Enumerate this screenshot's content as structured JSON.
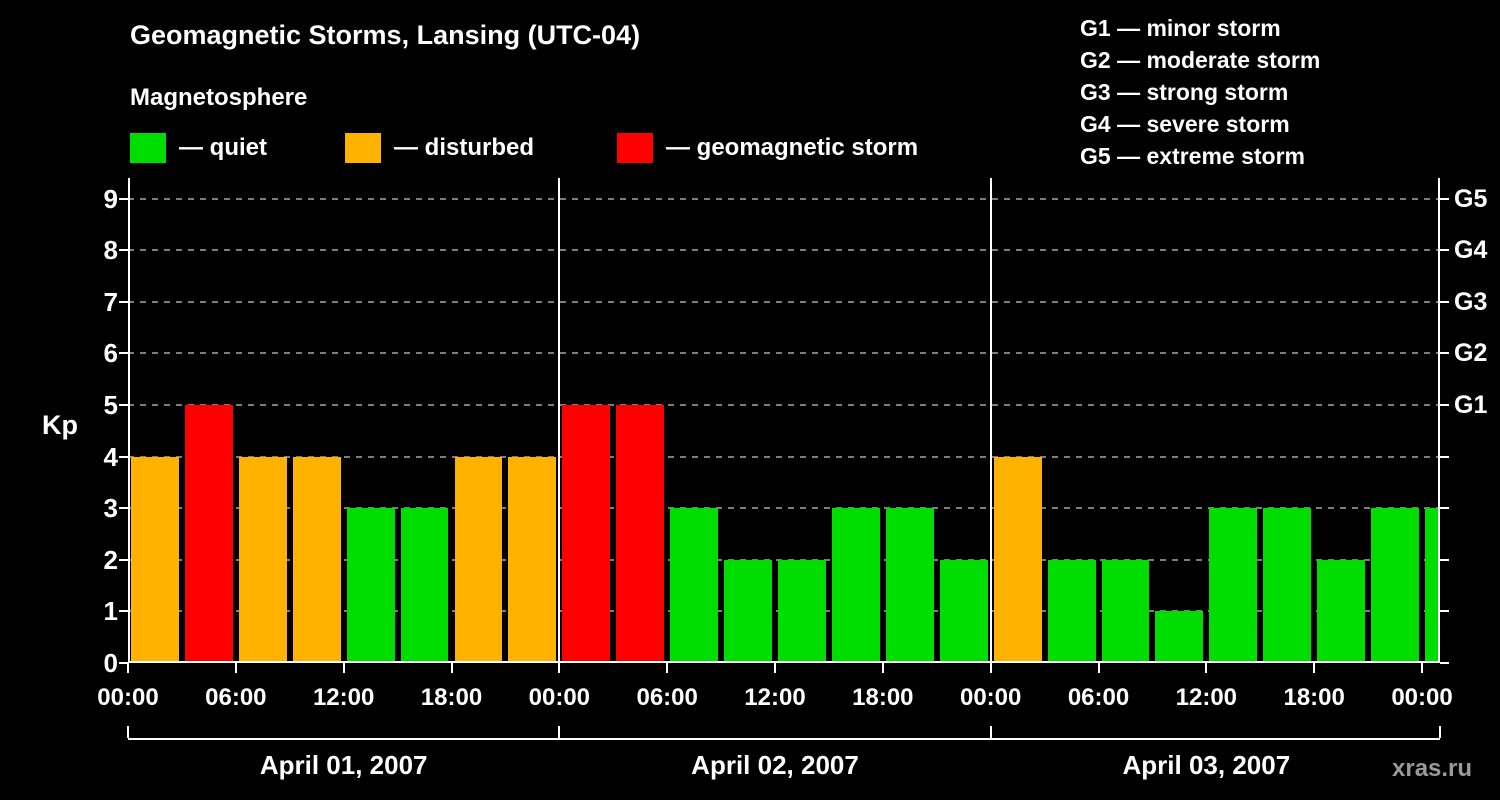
{
  "header": {
    "title": "Geomagnetic Storms, Lansing (UTC-04)",
    "subtitle": "Magnetosphere"
  },
  "legend": {
    "items": [
      {
        "label": "— quiet",
        "status": "quiet",
        "color": "#00dd00"
      },
      {
        "label": "— disturbed",
        "status": "disturbed",
        "color": "#ffb300"
      },
      {
        "label": "— geomagnetic storm",
        "status": "storm",
        "color": "#ff0000"
      }
    ]
  },
  "storm_scale": [
    "G1 — minor storm",
    "G2 — moderate storm",
    "G3 — strong storm",
    "G4 — severe storm",
    "G5 — extreme storm"
  ],
  "footer": {
    "watermark": "xras.ru"
  },
  "chart_data": {
    "type": "bar",
    "title": "Geomagnetic Storms, Lansing (UTC-04)",
    "ylabel": "Kp",
    "ylim": [
      0,
      9.4
    ],
    "yticks": [
      0,
      1,
      2,
      3,
      4,
      5,
      6,
      7,
      8,
      9
    ],
    "grid": "dashed-horizontal",
    "hours_per_bar": 3,
    "right_axis": [
      {
        "value": 5,
        "label": "G1"
      },
      {
        "value": 6,
        "label": "G2"
      },
      {
        "value": 7,
        "label": "G3"
      },
      {
        "value": 8,
        "label": "G4"
      },
      {
        "value": 9,
        "label": "G5"
      }
    ],
    "x_ticks": {
      "interval_hours": 6,
      "labels": [
        "00:00",
        "06:00",
        "12:00",
        "18:00",
        "00:00",
        "06:00",
        "12:00",
        "18:00",
        "00:00",
        "06:00",
        "12:00",
        "18:00",
        "00:00"
      ]
    },
    "days": [
      {
        "label": "April 01, 2007",
        "values": [
          4,
          5,
          4,
          4,
          3,
          3,
          4,
          4
        ]
      },
      {
        "label": "April 02, 2007",
        "values": [
          5,
          5,
          3,
          2,
          2,
          3,
          3,
          2
        ]
      },
      {
        "label": "April 03, 2007",
        "values": [
          4,
          2,
          2,
          1,
          3,
          3,
          2,
          3
        ]
      }
    ],
    "partial_next_day_value": 3,
    "thresholds": {
      "disturbed_min": 4,
      "storm_min": 5
    },
    "colors": {
      "quiet": "#00dd00",
      "disturbed": "#ffb300",
      "storm": "#ff0000",
      "grid": "#7d7d7d",
      "axis": "#ffffff",
      "background": "#000000"
    }
  }
}
